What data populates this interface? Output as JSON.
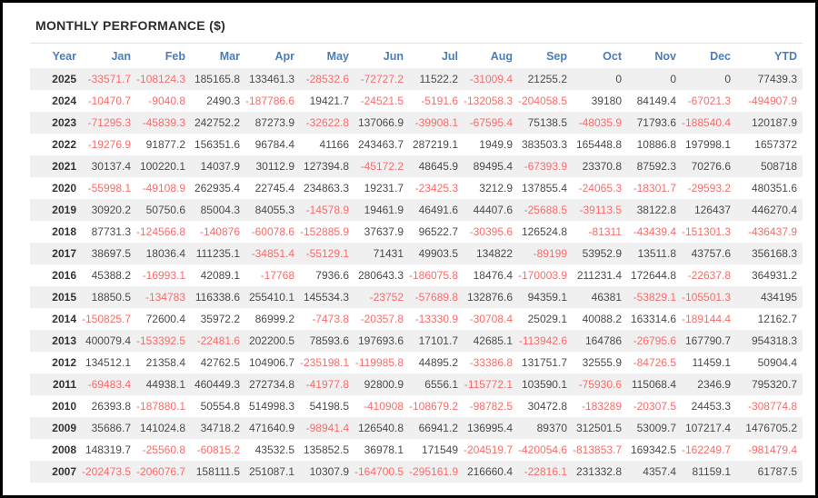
{
  "panel": {
    "title": "MONTHLY PERFORMANCE ($)"
  },
  "colors": {
    "header_blue": "#4a7ebb",
    "negative_red": "#f96b6b",
    "positive_dark": "#4a4a4a",
    "row_stripe": "#f0f0f0",
    "frame_border": "#000000"
  },
  "table": {
    "columns": [
      "Year",
      "Jan",
      "Feb",
      "Mar",
      "Apr",
      "May",
      "Jun",
      "Jul",
      "Aug",
      "Sep",
      "Oct",
      "Nov",
      "Dec",
      "YTD"
    ],
    "rows": [
      {
        "year": "2025",
        "values": [
          "-33571.7",
          "-108124.3",
          "185165.8",
          "133461.3",
          "-28532.6",
          "-72727.2",
          "11522.2",
          "-31009.4",
          "21255.2",
          "0",
          "0",
          "0",
          "77439.3"
        ]
      },
      {
        "year": "2024",
        "values": [
          "-10470.7",
          "-9040.8",
          "2490.3",
          "-187786.6",
          "19421.7",
          "-24521.5",
          "-5191.6",
          "-132058.3",
          "-204058.5",
          "39180",
          "84149.4",
          "-67021.3",
          "-494907.9"
        ]
      },
      {
        "year": "2023",
        "values": [
          "-71295.3",
          "-45839.3",
          "242752.2",
          "87273.9",
          "-32622.8",
          "137066.9",
          "-39908.1",
          "-67595.4",
          "75138.5",
          "-48035.9",
          "71793.6",
          "-188540.4",
          "120187.9"
        ]
      },
      {
        "year": "2022",
        "values": [
          "-19276.9",
          "91877.2",
          "156351.6",
          "96784.4",
          "41166",
          "243463.7",
          "287219.1",
          "1949.9",
          "383503.3",
          "165448.8",
          "10886.8",
          "197998.1",
          "1657372"
        ]
      },
      {
        "year": "2021",
        "values": [
          "30137.4",
          "100220.1",
          "14037.9",
          "30112.9",
          "127394.8",
          "-45172.2",
          "48645.9",
          "89495.4",
          "-67393.9",
          "23370.8",
          "87592.3",
          "70276.6",
          "508718"
        ]
      },
      {
        "year": "2020",
        "values": [
          "-55998.1",
          "-49108.9",
          "262935.4",
          "22745.4",
          "234863.3",
          "19231.7",
          "-23425.3",
          "3212.9",
          "137855.4",
          "-24065.3",
          "-18301.7",
          "-29593.2",
          "480351.6"
        ]
      },
      {
        "year": "2019",
        "values": [
          "30920.2",
          "50750.6",
          "85004.3",
          "84055.3",
          "-14578.9",
          "19461.9",
          "46491.6",
          "44407.6",
          "-25688.5",
          "-39113.5",
          "38122.8",
          "126437",
          "446270.4"
        ]
      },
      {
        "year": "2018",
        "values": [
          "87731.3",
          "-124566.8",
          "-140876",
          "-60078.6",
          "-152885.9",
          "37637.9",
          "96522.7",
          "-30395.6",
          "126524.8",
          "-81311",
          "-43439.4",
          "-151301.3",
          "-436437.9"
        ]
      },
      {
        "year": "2017",
        "values": [
          "38697.5",
          "18036.4",
          "111235.1",
          "-34851.4",
          "-55129.1",
          "71431",
          "49903.5",
          "134822",
          "-89199",
          "53952.9",
          "13511.8",
          "43757.6",
          "356168.3"
        ]
      },
      {
        "year": "2016",
        "values": [
          "45388.2",
          "-16993.1",
          "42089.1",
          "-17768",
          "7936.6",
          "280643.3",
          "-186075.8",
          "18476.4",
          "-170003.9",
          "211231.4",
          "172644.8",
          "-22637.8",
          "364931.2"
        ]
      },
      {
        "year": "2015",
        "values": [
          "18850.5",
          "-134783",
          "116338.6",
          "255410.1",
          "145534.3",
          "-23752",
          "-57689.8",
          "132876.6",
          "94359.1",
          "46381",
          "-53829.1",
          "-105501.3",
          "434195"
        ]
      },
      {
        "year": "2014",
        "values": [
          "-150825.7",
          "72600.4",
          "35972.2",
          "86999.2",
          "-7473.8",
          "-20357.8",
          "-13330.9",
          "-30708.4",
          "25029.1",
          "40088.2",
          "163314.6",
          "-189144.4",
          "12162.7"
        ]
      },
      {
        "year": "2013",
        "values": [
          "400079.4",
          "-153392.5",
          "-22481.6",
          "202200.5",
          "78593.6",
          "197693.6",
          "17101.7",
          "42685.1",
          "-113942.6",
          "164786",
          "-26795.6",
          "167790.7",
          "954318.3"
        ]
      },
      {
        "year": "2012",
        "values": [
          "134512.1",
          "21358.4",
          "42762.5",
          "104906.7",
          "-235198.1",
          "-119985.8",
          "44895.2",
          "-33386.8",
          "131751.7",
          "32555.9",
          "-84726.5",
          "11459.1",
          "50904.4"
        ]
      },
      {
        "year": "2011",
        "values": [
          "-69483.4",
          "44938.1",
          "460449.3",
          "272734.8",
          "-41977.8",
          "92800.9",
          "6556.1",
          "-115772.1",
          "103590.1",
          "-75930.6",
          "115068.4",
          "2346.9",
          "795320.7"
        ]
      },
      {
        "year": "2010",
        "values": [
          "26393.8",
          "-187880.1",
          "50554.8",
          "514998.3",
          "54198.5",
          "-410908",
          "-108679.2",
          "-98782.5",
          "30472.8",
          "-183289",
          "-20307.5",
          "24453.3",
          "-308774.8"
        ]
      },
      {
        "year": "2009",
        "values": [
          "35686.7",
          "141024.8",
          "34718.2",
          "471640.9",
          "-98941.4",
          "126540.8",
          "66941.2",
          "136995.4",
          "89370",
          "312501.5",
          "53009.7",
          "107217.4",
          "1476705.2"
        ]
      },
      {
        "year": "2008",
        "values": [
          "148319.7",
          "-25560.8",
          "-60815.2",
          "43532.5",
          "135852.5",
          "36978.1",
          "171549",
          "-204519.7",
          "-420054.6",
          "-813853.7",
          "169342.5",
          "-162249.7",
          "-981479.4"
        ]
      },
      {
        "year": "2007",
        "values": [
          "-202473.5",
          "-206076.7",
          "158111.5",
          "251087.1",
          "10307.9",
          "-164700.5",
          "-295161.9",
          "216660.4",
          "-22816.1",
          "231332.8",
          "4357.4",
          "81159.1",
          "61787.5"
        ]
      }
    ]
  }
}
